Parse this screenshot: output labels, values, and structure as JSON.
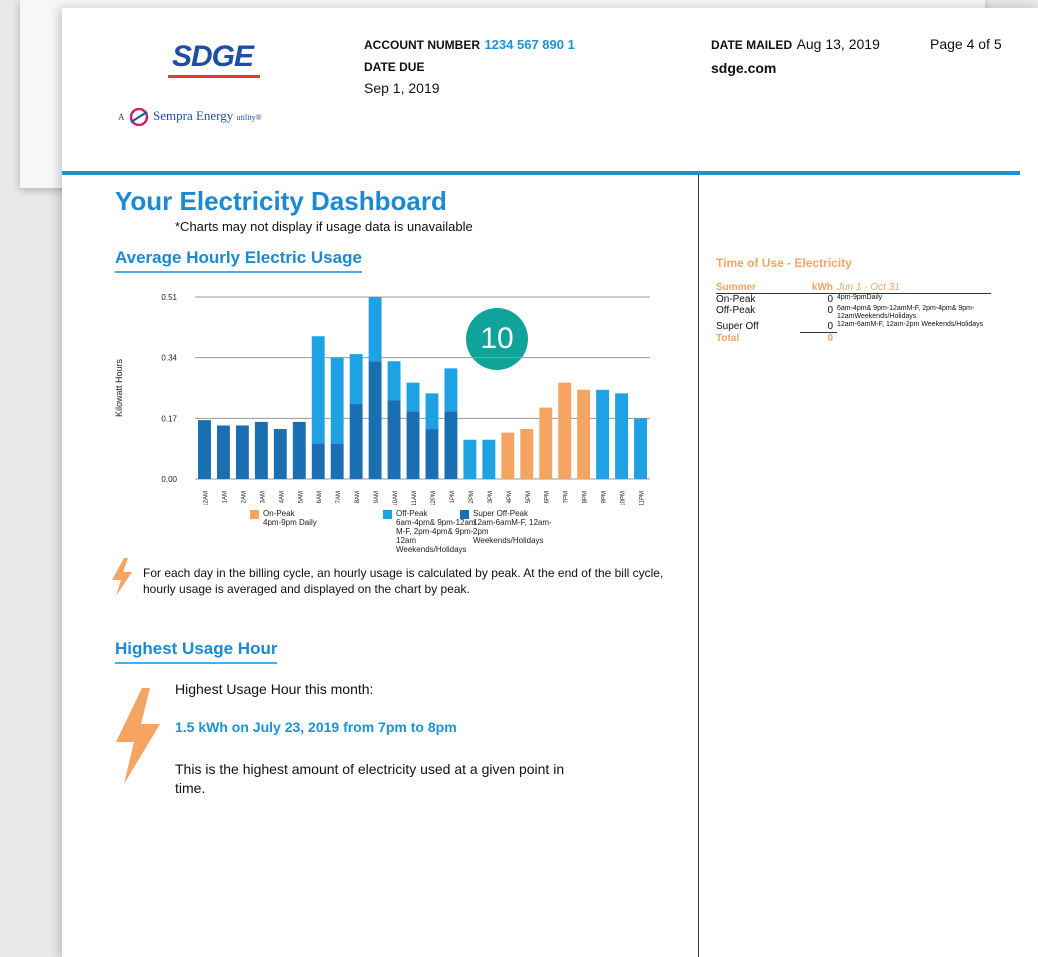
{
  "header": {
    "logo": "SDGE",
    "tagline_prefix": "A",
    "tagline": "Sempra Energy",
    "tagline_suffix": "utility®",
    "account_number_label": "ACCOUNT NUMBER",
    "account_number": "1234 567 890 1",
    "date_due_label": "DATE DUE",
    "date_due": "Sep 1, 2019",
    "date_mailed_label": "DATE MAILED",
    "date_mailed": "Aug 13, 2019",
    "page": "Page 4 of 5",
    "website": "sdge.com"
  },
  "title": "Your Electricity Dashboard",
  "subtitle": "*Charts may not display if usage data is unavailable",
  "badge": "10",
  "chart_data": {
    "type": "bar",
    "stacked": true,
    "title": "Average Hourly Electric Usage",
    "y_label": "Kilowatt Hours",
    "categories": [
      "12AM",
      "1AM",
      "2AM",
      "3AM",
      "4AM",
      "5AM",
      "6AM",
      "7AM",
      "8AM",
      "9AM",
      "10AM",
      "11AM",
      "12PM",
      "1PM",
      "2PM",
      "3PM",
      "4PM",
      "5PM",
      "6PM",
      "7PM",
      "8PM",
      "9PM",
      "10PM",
      "11PM"
    ],
    "series": [
      {
        "name": "On-Peak",
        "description": "4pm-9pm Daily",
        "color": "#f5a462",
        "values": [
          0,
          0,
          0,
          0,
          0,
          0,
          0,
          0,
          0,
          0,
          0,
          0,
          0,
          0,
          0,
          0,
          0.13,
          0.14,
          0.2,
          0.27,
          0.25,
          0,
          0,
          0
        ]
      },
      {
        "name": "Off-Peak",
        "description": "6am-4pm& 9pm-12am M-F, 2pm-4pm& 9pm-12am Weekends/Holidays",
        "color": "#1ea2e3",
        "values": [
          0,
          0,
          0,
          0,
          0,
          0,
          0.3,
          0.24,
          0.14,
          0.18,
          0.11,
          0.08,
          0.1,
          0.12,
          0.11,
          0.11,
          0,
          0,
          0,
          0,
          0,
          0.25,
          0.24,
          0.17
        ]
      },
      {
        "name": "Super Off-Peak",
        "description": "12am-6amM-F, 12am-2pm Weekends/Holidays",
        "color": "#1a6fb3",
        "values": [
          0.165,
          0.15,
          0.15,
          0.16,
          0.14,
          0.16,
          0.1,
          0.1,
          0.21,
          0.33,
          0.22,
          0.19,
          0.14,
          0.19,
          0,
          0,
          0,
          0,
          0,
          0,
          0,
          0,
          0,
          0
        ]
      }
    ],
    "ylim": [
      0,
      0.51
    ],
    "yticks": [
      {
        "value": 0,
        "label": "0.00"
      },
      0.17,
      0.34,
      0.51
    ],
    "grid": true
  },
  "note": "For each day in the billing cycle, an hourly usage is calculated by peak. At the end of the bill cycle, hourly usage is averaged and displayed on the chart by peak.",
  "highest": {
    "heading": "Highest Usage Hour",
    "intro": "Highest Usage Hour this month:",
    "highlight": "1.5 kWh on July 23, 2019 from 7pm to 8pm",
    "explanation": "This is the highest amount of electricity used at a given point in time."
  },
  "time_of_use": {
    "title": "Time of Use - Electricity",
    "columns": [
      "Summer",
      "kWh",
      "Jun 1 - Oct 31"
    ],
    "rows": [
      [
        "On-Peak",
        0,
        "4pm-9pmDaily"
      ],
      [
        "Off-Peak",
        0,
        "6am-4pm& 9pm-12amM-F, 2pm-4pm& 9pm-12amWeekends/Holidays"
      ],
      [
        "Super Off",
        0,
        "12am-6amM-F, 12am-2pm Weekends/Holidays"
      ]
    ],
    "total": [
      "Total",
      0
    ]
  }
}
